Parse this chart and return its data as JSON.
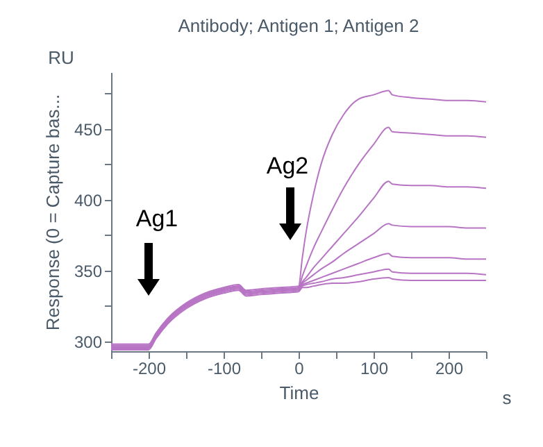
{
  "chart_data": {
    "type": "line",
    "title": "Antibody; Antigen 1; Antigen 2",
    "xlabel": "Time",
    "ylabel": "Response (0 = Capture bas...",
    "annotations": [
      "Ag1",
      "Ag2",
      "RU",
      "s"
    ],
    "x": [
      -250,
      -200,
      -190,
      -175,
      -150,
      -125,
      -100,
      -80,
      -70,
      -50,
      -25,
      0,
      5,
      10,
      20,
      30,
      45,
      60,
      80,
      100,
      120,
      125,
      150,
      175,
      200,
      225,
      250
    ],
    "series": [
      {
        "color": "#b874c4",
        "values": [
          298,
          298,
          306,
          316,
          327,
          334,
          338,
          340,
          336,
          337,
          338,
          339,
          359,
          377,
          404,
          425,
          446,
          460,
          471,
          474,
          477,
          474,
          472,
          471,
          470,
          470,
          469
        ]
      },
      {
        "color": "#b874c4",
        "values": [
          297,
          297,
          305,
          315,
          326,
          333,
          337,
          339,
          335,
          336,
          337,
          338,
          346,
          353,
          366,
          377,
          393,
          408,
          425,
          439,
          451,
          448,
          447,
          446,
          445,
          445,
          444
        ]
      },
      {
        "color": "#b874c4",
        "values": [
          297,
          297,
          305,
          315,
          326,
          333,
          337,
          339,
          335,
          336,
          337,
          338,
          342,
          345,
          352,
          358,
          367,
          376,
          388,
          401,
          413,
          411,
          410,
          410,
          409,
          409,
          408
        ]
      },
      {
        "color": "#b874c4",
        "values": [
          296,
          296,
          304,
          314,
          325,
          332,
          336,
          338,
          334,
          335,
          336,
          337,
          341,
          343,
          347,
          351,
          356,
          362,
          369,
          376,
          383,
          382,
          381,
          381,
          381,
          380,
          380
        ]
      },
      {
        "color": "#b874c4",
        "values": [
          296,
          296,
          304,
          314,
          325,
          332,
          336,
          338,
          334,
          335,
          336,
          337,
          340,
          341,
          343,
          345,
          348,
          351,
          355,
          359,
          362,
          360,
          359,
          359,
          359,
          358,
          358
        ]
      },
      {
        "color": "#b874c4",
        "values": [
          295,
          295,
          303,
          313,
          324,
          331,
          335,
          337,
          333,
          334,
          335,
          336,
          339,
          340,
          341,
          342,
          344,
          345,
          347,
          349,
          351,
          349,
          348,
          348,
          348,
          348,
          347
        ]
      },
      {
        "color": "#b874c4",
        "values": [
          294,
          294,
          302,
          312,
          323,
          330,
          334,
          336,
          332,
          333,
          334,
          335,
          338,
          338,
          339,
          340,
          341,
          341,
          342,
          344,
          345,
          344,
          343,
          343,
          343,
          343,
          343
        ]
      }
    ],
    "xlim": [
      -250,
      250
    ],
    "ylim": [
      293,
      490
    ],
    "xticks": [
      {
        "value": -250,
        "label": null
      },
      -200,
      {
        "value": -150,
        "label": null
      },
      -100,
      {
        "value": -50,
        "label": null
      },
      0,
      {
        "value": 50,
        "label": null
      },
      100,
      {
        "value": 150,
        "label": null
      },
      200,
      {
        "value": 250,
        "label": null
      }
    ],
    "yticks": [
      300,
      {
        "value": 325,
        "label": null
      },
      350,
      {
        "value": 375,
        "label": null
      },
      400,
      {
        "value": 425,
        "label": null
      },
      450,
      {
        "value": 475,
        "label": null
      }
    ],
    "grid": false,
    "legend": false,
    "line_style": "solid"
  }
}
